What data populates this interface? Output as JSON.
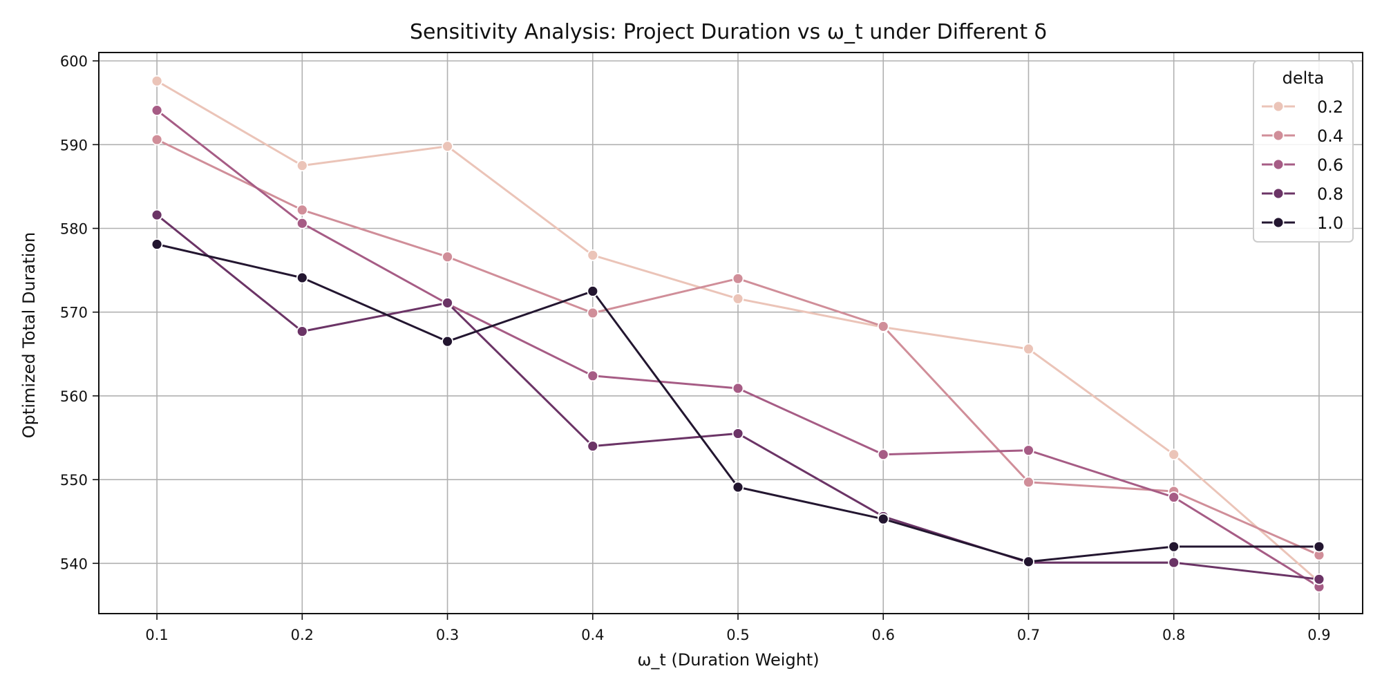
{
  "chart_data": {
    "type": "line",
    "title": "Sensitivity Analysis: Project Duration vs ω_t under Different δ",
    "xlabel": "ω_t (Duration Weight)",
    "ylabel": "Optimized Total Duration",
    "x": [
      0.1,
      0.2,
      0.3,
      0.4,
      0.5,
      0.6,
      0.7,
      0.8,
      0.9
    ],
    "x_tick_labels": [
      "0.1",
      "0.2",
      "0.3",
      "0.4",
      "0.5",
      "0.6",
      "0.7",
      "0.8",
      "0.9"
    ],
    "xlim": [
      0.06,
      0.93
    ],
    "ylim": [
      534,
      601
    ],
    "y_ticks": [
      540,
      550,
      560,
      570,
      580,
      590,
      600
    ],
    "y_tick_labels": [
      "540",
      "550",
      "560",
      "570",
      "580",
      "590",
      "600"
    ],
    "grid": true,
    "legend": {
      "title": "delta",
      "position": "top-right"
    },
    "series": [
      {
        "name": "0.2",
        "color": "#ebc4b8",
        "values": [
          597.6,
          587.5,
          589.8,
          576.8,
          571.6,
          568.2,
          565.6,
          553.0,
          537.8
        ]
      },
      {
        "name": "0.4",
        "color": "#d08e99",
        "values": [
          590.6,
          582.2,
          576.6,
          569.9,
          574.0,
          568.3,
          549.7,
          548.6,
          541.0
        ]
      },
      {
        "name": "0.6",
        "color": "#a65c85",
        "values": [
          594.1,
          580.6,
          571.0,
          562.4,
          560.9,
          553.0,
          553.5,
          547.9,
          537.2
        ]
      },
      {
        "name": "0.8",
        "color": "#6b3466",
        "values": [
          581.6,
          567.7,
          571.1,
          554.0,
          555.5,
          545.6,
          540.1,
          540.1,
          538.1
        ]
      },
      {
        "name": "1.0",
        "color": "#231630",
        "values": [
          578.1,
          574.1,
          566.5,
          572.5,
          549.1,
          545.3,
          540.2,
          542.0,
          542.0
        ]
      }
    ]
  }
}
